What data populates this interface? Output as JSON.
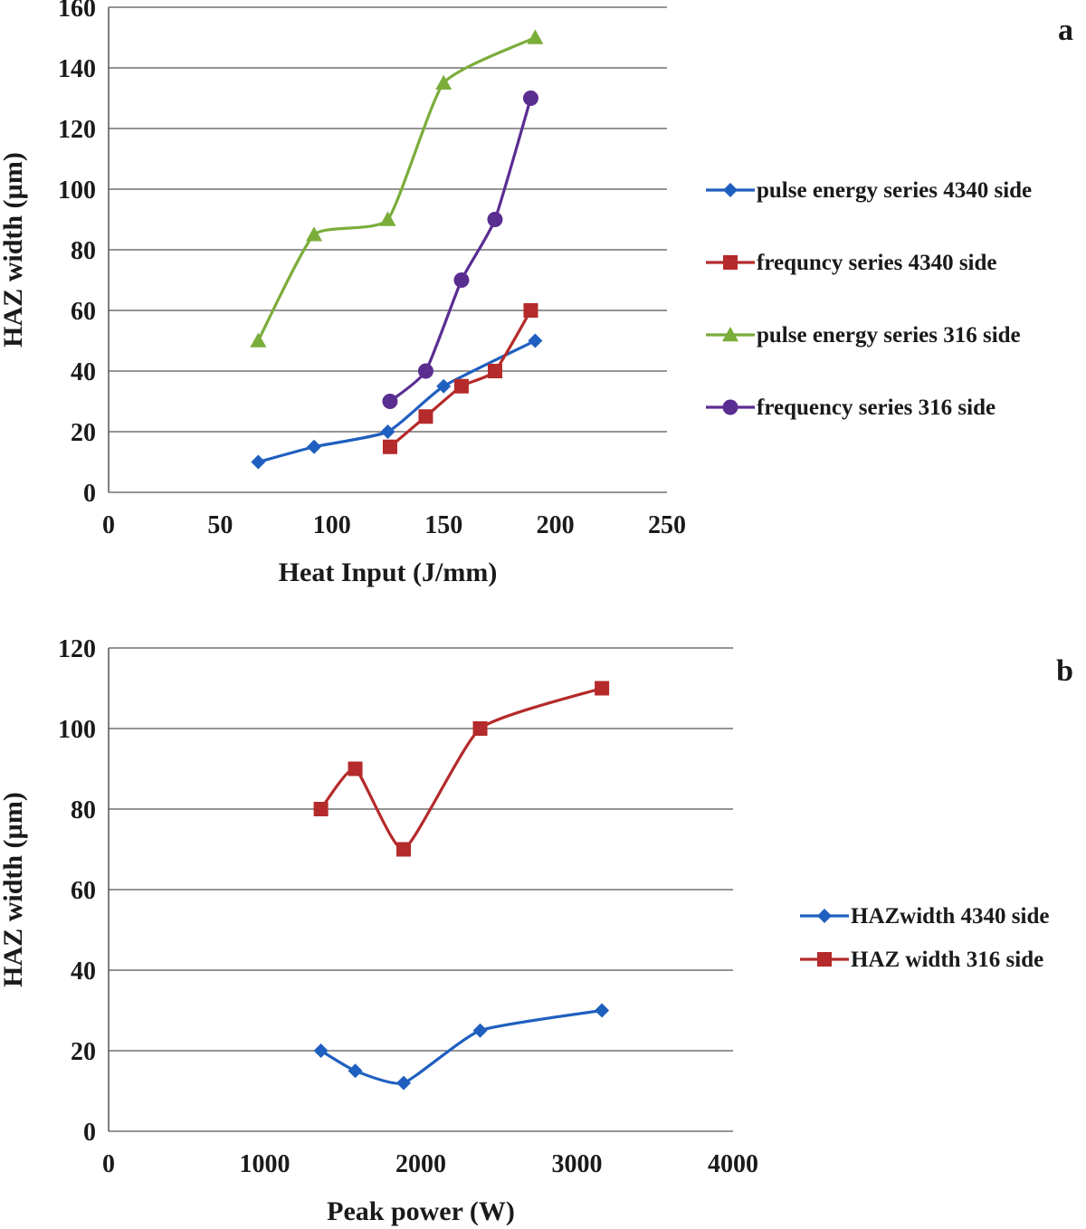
{
  "chart_data": [
    {
      "type": "line",
      "panel_label": "a",
      "xlabel": "Heat Input (J/mm)",
      "ylabel": "HAZ width (µm)",
      "xlim": [
        0,
        250
      ],
      "ylim": [
        0,
        160
      ],
      "xticks": [
        0,
        50,
        100,
        150,
        200,
        250
      ],
      "yticks": [
        0,
        20,
        40,
        60,
        80,
        100,
        120,
        140,
        160
      ],
      "grid": true,
      "legend_position": "right",
      "series": [
        {
          "name": "pulse energy series 4340 side",
          "color": "#1f5fbf",
          "marker": "diamond",
          "x": [
            67,
            92,
            125,
            150,
            191
          ],
          "y": [
            10,
            15,
            20,
            35,
            50
          ]
        },
        {
          "name": "frequncy series 4340 side",
          "color": "#b52a2a",
          "marker": "square",
          "x": [
            126,
            142,
            158,
            173,
            189
          ],
          "y": [
            15,
            25,
            35,
            40,
            60
          ]
        },
        {
          "name": "pulse energy series 316 side",
          "color": "#7aad3a",
          "marker": "triangle",
          "x": [
            67,
            92,
            125,
            150,
            191
          ],
          "y": [
            50,
            85,
            90,
            135,
            150
          ]
        },
        {
          "name": "frequency series 316 side",
          "color": "#5a2d91",
          "marker": "circle",
          "x": [
            126,
            142,
            158,
            173,
            189
          ],
          "y": [
            30,
            40,
            70,
            90,
            130
          ]
        }
      ]
    },
    {
      "type": "line",
      "panel_label": "b",
      "xlabel": "Peak power (W)",
      "ylabel": "HAZ width (µm)",
      "xlim": [
        0,
        4000
      ],
      "ylim": [
        0,
        120
      ],
      "xticks": [
        0,
        1000,
        2000,
        3000,
        4000
      ],
      "yticks": [
        0,
        20,
        40,
        60,
        80,
        100,
        120
      ],
      "grid": true,
      "legend_position": "right",
      "series": [
        {
          "name": "HAZwidth 4340 side",
          "color": "#1f5fbf",
          "marker": "diamond",
          "x": [
            1360,
            1580,
            1890,
            2380,
            3160
          ],
          "y": [
            20,
            15,
            12,
            25,
            30
          ]
        },
        {
          "name": "HAZ width 316 side",
          "color": "#b52a2a",
          "marker": "square",
          "x": [
            1360,
            1580,
            1890,
            2380,
            3160
          ],
          "y": [
            80,
            90,
            70,
            100,
            110
          ]
        }
      ]
    }
  ]
}
